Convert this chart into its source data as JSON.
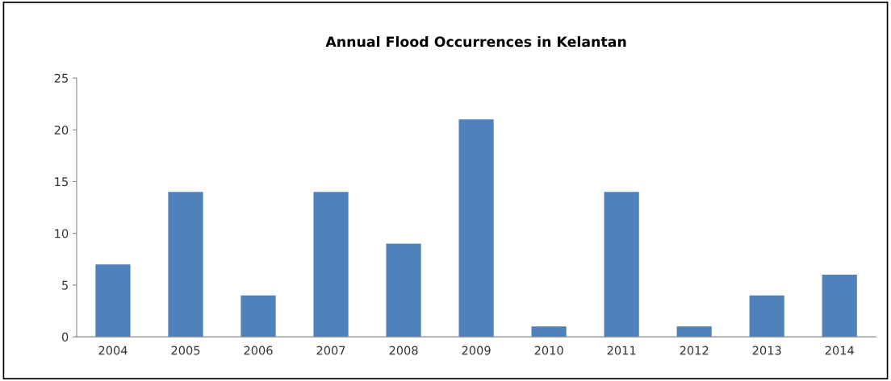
{
  "chart_data": {
    "type": "bar",
    "title": "Annual Flood Occurrences in Kelantan",
    "categories": [
      "2004",
      "2005",
      "2006",
      "2007",
      "2008",
      "2009",
      "2010",
      "2011",
      "2012",
      "2013",
      "2014"
    ],
    "values": [
      7,
      14,
      4,
      14,
      9,
      21,
      1,
      14,
      1,
      4,
      6
    ],
    "color": "#4f81bd",
    "ylim": [
      0,
      25
    ],
    "yticks": [
      0,
      5,
      10,
      15,
      20,
      25
    ],
    "grid": false,
    "legend": false
  }
}
